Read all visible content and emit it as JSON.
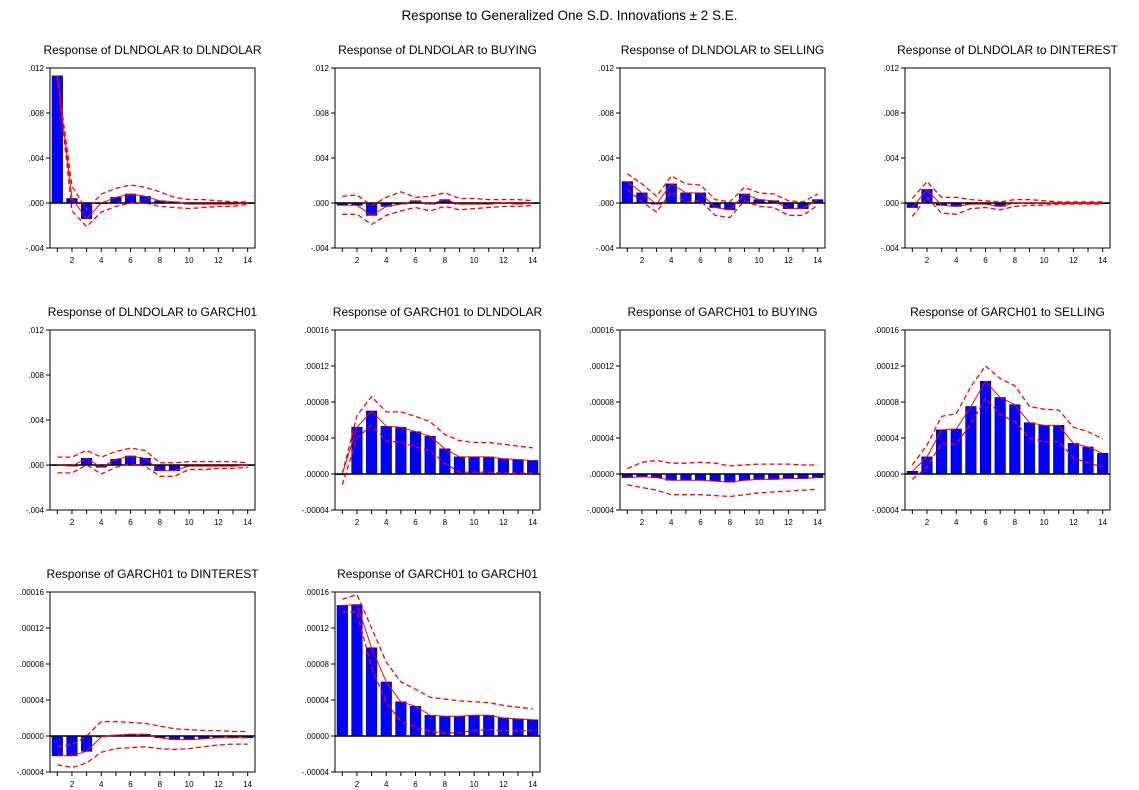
{
  "figure": {
    "title": "Response to Generalized One S.D. Innovations ± 2 S.E."
  },
  "colors": {
    "bar_fill": "#0000ff",
    "bar_stroke": "#000080",
    "band": "#ff0000",
    "response_line": "#ff0000",
    "axis": "#000000"
  },
  "chart_data": [
    {
      "type": "bar",
      "title": "Response of DLNDOLAR to DLNDOLAR",
      "x": [
        1,
        2,
        3,
        4,
        5,
        6,
        7,
        8,
        9,
        10,
        11,
        12,
        13,
        14
      ],
      "x_tick_labels": [
        "2",
        "4",
        "6",
        "8",
        "10",
        "12",
        "14"
      ],
      "y_tick_labels": [
        ".012",
        ".008",
        ".004",
        ".000",
        "-.004"
      ],
      "ylim": [
        -0.004,
        0.012
      ],
      "values": [
        0.0113,
        0.0004,
        -0.0014,
        0.0,
        0.0005,
        0.0008,
        0.0006,
        0.0002,
        0.0001,
        -0.0001,
        -0.0001,
        -0.0001,
        -0.0001,
        0.0
      ],
      "upper": [
        0.0113,
        0.0015,
        -0.0006,
        0.0008,
        0.0013,
        0.0016,
        0.0014,
        0.001,
        0.0005,
        0.0003,
        0.0003,
        0.0002,
        0.0001,
        0.0001
      ],
      "lower": [
        0.0113,
        -0.0007,
        -0.0021,
        -0.0008,
        -0.0003,
        0.0,
        0.0,
        -0.0003,
        -0.0004,
        -0.0005,
        -0.0004,
        -0.0003,
        -0.0003,
        -0.0001
      ]
    },
    {
      "type": "bar",
      "title": "Response of DLNDOLAR to BUYING",
      "x": [
        1,
        2,
        3,
        4,
        5,
        6,
        7,
        8,
        9,
        10,
        11,
        12,
        13,
        14
      ],
      "x_tick_labels": [
        "2",
        "4",
        "6",
        "8",
        "10",
        "12",
        "14"
      ],
      "y_tick_labels": [
        ".012",
        ".008",
        ".004",
        ".000",
        "-.004"
      ],
      "ylim": [
        -0.004,
        0.012
      ],
      "values": [
        -0.0002,
        -0.0002,
        -0.0011,
        -0.0003,
        -0.0001,
        0.0002,
        -0.0001,
        0.0003,
        -0.0001,
        -0.0001,
        -0.0001,
        0.0,
        -0.0001,
        0.0
      ],
      "upper": [
        0.0006,
        0.0007,
        -0.0002,
        0.0005,
        0.001,
        0.0005,
        0.0006,
        0.0009,
        0.0004,
        0.0004,
        0.0003,
        0.0003,
        0.0003,
        0.0002
      ],
      "lower": [
        -0.001,
        -0.001,
        -0.0019,
        -0.0011,
        -0.0007,
        -0.0004,
        -0.0007,
        -0.0003,
        -0.0006,
        -0.0005,
        -0.0004,
        -0.0003,
        -0.0003,
        -0.0002
      ]
    },
    {
      "type": "bar",
      "title": "Response of DLNDOLAR to SELLING",
      "x": [
        1,
        2,
        3,
        4,
        5,
        6,
        7,
        8,
        9,
        10,
        11,
        12,
        13,
        14
      ],
      "x_tick_labels": [
        "2",
        "4",
        "6",
        "8",
        "10",
        "12",
        "14"
      ],
      "y_tick_labels": [
        ".012",
        ".008",
        ".004",
        ".000",
        "-.004"
      ],
      "ylim": [
        -0.004,
        0.012
      ],
      "values": [
        0.0019,
        0.0009,
        -0.0001,
        0.0017,
        0.0009,
        0.0009,
        -0.0004,
        -0.0006,
        0.0008,
        0.0003,
        0.0002,
        -0.0005,
        -0.0005,
        0.0003
      ],
      "upper": [
        0.0026,
        0.0017,
        0.0006,
        0.0024,
        0.0017,
        0.0016,
        0.0003,
        0.0001,
        0.0014,
        0.0009,
        0.0008,
        0.0002,
        0.0001,
        0.0008
      ],
      "lower": [
        0.0012,
        0.0001,
        -0.0008,
        0.001,
        0.0001,
        0.0002,
        -0.0011,
        -0.0013,
        0.0002,
        -0.0003,
        -0.0004,
        -0.0011,
        -0.0011,
        -0.0002
      ]
    },
    {
      "type": "bar",
      "title": "Response of DLNDOLAR to DINTEREST",
      "x": [
        1,
        2,
        3,
        4,
        5,
        6,
        7,
        8,
        9,
        10,
        11,
        12,
        13,
        14
      ],
      "x_tick_labels": [
        "2",
        "4",
        "6",
        "8",
        "10",
        "12",
        "14"
      ],
      "y_tick_labels": [
        ".012",
        ".008",
        ".004",
        ".000",
        "-.004"
      ],
      "ylim": [
        -0.004,
        0.012
      ],
      "values": [
        -0.0004,
        0.0012,
        -0.0002,
        -0.0003,
        -0.0001,
        -0.0001,
        -0.0003,
        0.0,
        0.0,
        0.0,
        0.0,
        0.0,
        0.0,
        0.0
      ],
      "upper": [
        0.0004,
        0.0019,
        0.0005,
        0.0005,
        0.0003,
        0.0002,
        0.0001,
        0.0003,
        0.0003,
        0.0002,
        0.0001,
        0.0001,
        0.0001,
        0.0001
      ],
      "lower": [
        -0.0012,
        0.0005,
        -0.0009,
        -0.001,
        -0.0005,
        -0.0004,
        -0.0006,
        -0.0003,
        -0.0002,
        -0.0002,
        -0.0001,
        -0.0001,
        -0.0001,
        -0.0001
      ]
    },
    {
      "type": "bar",
      "title": "Response of DLNDOLAR to GARCH01",
      "x": [
        1,
        2,
        3,
        4,
        5,
        6,
        7,
        8,
        9,
        10,
        11,
        12,
        13,
        14
      ],
      "x_tick_labels": [
        "2",
        "4",
        "6",
        "8",
        "10",
        "12",
        "14"
      ],
      "y_tick_labels": [
        ".012",
        ".008",
        ".004",
        ".000",
        "-.004"
      ],
      "ylim": [
        -0.004,
        0.012
      ],
      "values": [
        0.0,
        -0.0001,
        0.0006,
        -0.0002,
        0.0005,
        0.0008,
        0.0006,
        -0.0005,
        -0.0005,
        -0.0001,
        -0.0001,
        -0.0001,
        -0.0001,
        0.0
      ],
      "upper": [
        0.0007,
        0.0007,
        0.0013,
        0.0007,
        0.0012,
        0.0015,
        0.0013,
        0.0002,
        0.0002,
        0.0003,
        0.0003,
        0.0003,
        0.0003,
        0.0002
      ],
      "lower": [
        -0.0007,
        -0.0007,
        0.0,
        -0.0008,
        -0.0002,
        0.0001,
        -0.0001,
        -0.001,
        -0.001,
        -0.0004,
        -0.0004,
        -0.0003,
        -0.0003,
        -0.0002
      ]
    },
    {
      "type": "bar",
      "title": "Response of GARCH01 to DLNDOLAR",
      "x": [
        1,
        2,
        3,
        4,
        5,
        6,
        7,
        8,
        9,
        10,
        11,
        12,
        13,
        14
      ],
      "x_tick_labels": [
        "2",
        "4",
        "6",
        "8",
        "10",
        "12",
        "14"
      ],
      "y_tick_labels": [
        ".00016",
        ".00012",
        ".00008",
        ".00004",
        ".00000",
        "-.00004"
      ],
      "ylim": [
        -4e-05,
        0.00016
      ],
      "values": [
        0.0,
        5.2e-05,
        7e-05,
        5.3e-05,
        5.2e-05,
        4.7e-05,
        4.2e-05,
        2.8e-05,
        1.9e-05,
        1.9e-05,
        1.9e-05,
        1.7e-05,
        1.6e-05,
        1.5e-05
      ],
      "upper": [
        0.0,
        6.5e-05,
        8.6e-05,
        6.9e-05,
        6.9e-05,
        6.4e-05,
        5.8e-05,
        4.4e-05,
        3.7e-05,
        3.5e-05,
        3.5e-05,
        3.3e-05,
        3.1e-05,
        2.9e-05
      ],
      "lower": [
        -1.2e-05,
        4e-05,
        5.4e-05,
        3.7e-05,
        3.5e-05,
        3e-05,
        2.6e-05,
        1.2e-05,
        2e-06,
        2e-06,
        2e-06,
        1e-06,
        1e-06,
        1e-06
      ]
    },
    {
      "type": "bar",
      "title": "Response of GARCH01 to BUYING",
      "x": [
        1,
        2,
        3,
        4,
        5,
        6,
        7,
        8,
        9,
        10,
        11,
        12,
        13,
        14
      ],
      "x_tick_labels": [
        "2",
        "4",
        "6",
        "8",
        "10",
        "12",
        "14"
      ],
      "y_tick_labels": [
        ".00016",
        ".00012",
        ".00008",
        ".00004",
        ".00000",
        "-.00004"
      ],
      "ylim": [
        -4e-05,
        0.00016
      ],
      "values": [
        -4e-06,
        -3e-06,
        -4e-06,
        -7e-06,
        -7e-06,
        -7e-06,
        -8e-06,
        -9e-06,
        -7e-06,
        -6e-06,
        -6e-06,
        -5e-06,
        -5e-06,
        -4e-06
      ],
      "upper": [
        6e-06,
        1.3e-05,
        1.5e-05,
        1.2e-05,
        1.2e-05,
        1.3e-05,
        1.2e-05,
        9e-06,
        1e-05,
        1.1e-05,
        1.1e-05,
        1.1e-05,
        1e-05,
        1e-05
      ],
      "lower": [
        -1.2e-05,
        -1.5e-05,
        -1.8e-05,
        -2.3e-05,
        -2.3e-05,
        -2.3e-05,
        -2.4e-05,
        -2.5e-05,
        -2.3e-05,
        -2.1e-05,
        -2e-05,
        -1.9e-05,
        -1.8e-05,
        -1.7e-05
      ]
    },
    {
      "type": "bar",
      "title": "Response of GARCH01 to SELLING",
      "x": [
        1,
        2,
        3,
        4,
        5,
        6,
        7,
        8,
        9,
        10,
        11,
        12,
        13,
        14
      ],
      "x_tick_labels": [
        "2",
        "4",
        "6",
        "8",
        "10",
        "12",
        "14"
      ],
      "y_tick_labels": [
        ".00016",
        ".00012",
        ".00008",
        ".00004",
        ".00000",
        "-.00004"
      ],
      "ylim": [
        -4e-05,
        0.00016
      ],
      "values": [
        3e-06,
        1.9e-05,
        4.9e-05,
        5e-05,
        7.5e-05,
        0.000103,
        8.5e-05,
        7.7e-05,
        5.7e-05,
        5.4e-05,
        5.4e-05,
        3.4e-05,
        3e-05,
        2.3e-05
      ],
      "upper": [
        1e-05,
        3.2e-05,
        6.4e-05,
        6.7e-05,
        9.7e-05,
        0.00012,
        0.000106,
        9.8e-05,
        7.5e-05,
        7.2e-05,
        7.1e-05,
        5.2e-05,
        4.7e-05,
        3.9e-05
      ],
      "lower": [
        -6e-06,
        8e-06,
        3.4e-05,
        3.3e-05,
        5.6e-05,
        8.4e-05,
        6.6e-05,
        5.8e-05,
        4e-05,
        3.6e-05,
        3.6e-05,
        1.8e-05,
        1.2e-05,
        8e-06
      ]
    },
    {
      "type": "bar",
      "title": "Response of GARCH01 to DINTEREST",
      "x": [
        1,
        2,
        3,
        4,
        5,
        6,
        7,
        8,
        9,
        10,
        11,
        12,
        13,
        14
      ],
      "x_tick_labels": [
        "2",
        "4",
        "6",
        "8",
        "10",
        "12",
        "14"
      ],
      "y_tick_labels": [
        ".00016",
        ".00012",
        ".00008",
        ".00004",
        ".00000",
        "-.00004"
      ],
      "ylim": [
        -4e-05,
        0.00016
      ],
      "values": [
        -2.2e-05,
        -2.2e-05,
        -1.7e-05,
        -1e-06,
        1e-06,
        2e-06,
        2e-06,
        -2e-06,
        -4e-06,
        -4e-06,
        -3e-06,
        -2e-06,
        -2e-06,
        -2e-06
      ],
      "upper": [
        -1.2e-05,
        -1e-05,
        0.0,
        1.6e-05,
        1.6e-05,
        1.5e-05,
        1.4e-05,
        1.1e-05,
        8e-06,
        7e-06,
        6e-06,
        6e-06,
        5e-06,
        5e-06
      ],
      "lower": [
        -3.2e-05,
        -3.5e-05,
        -3e-05,
        -1.8e-05,
        -1.4e-05,
        -1.3e-05,
        -1.2e-05,
        -1.4e-05,
        -1.5e-05,
        -1.4e-05,
        -1.2e-05,
        -1e-05,
        -9e-06,
        -9e-06
      ]
    },
    {
      "type": "bar",
      "title": "Response of GARCH01 to GARCH01",
      "x": [
        1,
        2,
        3,
        4,
        5,
        6,
        7,
        8,
        9,
        10,
        11,
        12,
        13,
        14
      ],
      "x_tick_labels": [
        "2",
        "4",
        "6",
        "8",
        "10",
        "12",
        "14"
      ],
      "y_tick_labels": [
        ".00016",
        ".00012",
        ".00008",
        ".00004",
        ".00000",
        "-.00004"
      ],
      "ylim": [
        -4e-05,
        0.00016
      ],
      "values": [
        0.000145,
        0.000146,
        9.8e-05,
        6e-05,
        3.8e-05,
        3.3e-05,
        2.3e-05,
        2.2e-05,
        2.2e-05,
        2.3e-05,
        2.3e-05,
        2e-05,
        1.9e-05,
        1.8e-05
      ],
      "upper": [
        0.000152,
        0.000157,
        0.00012,
        8.2e-05,
        6e-05,
        5.2e-05,
        4.3e-05,
        4.1e-05,
        3.9e-05,
        3.8e-05,
        3.7e-05,
        3.4e-05,
        3.2e-05,
        3e-05
      ],
      "lower": [
        0.000138,
        0.000138,
        7.6e-05,
        3.7e-05,
        1.6e-05,
        1e-05,
        5e-06,
        3e-06,
        4e-06,
        6e-06,
        7e-06,
        6e-06,
        6e-06,
        6e-06
      ]
    }
  ]
}
